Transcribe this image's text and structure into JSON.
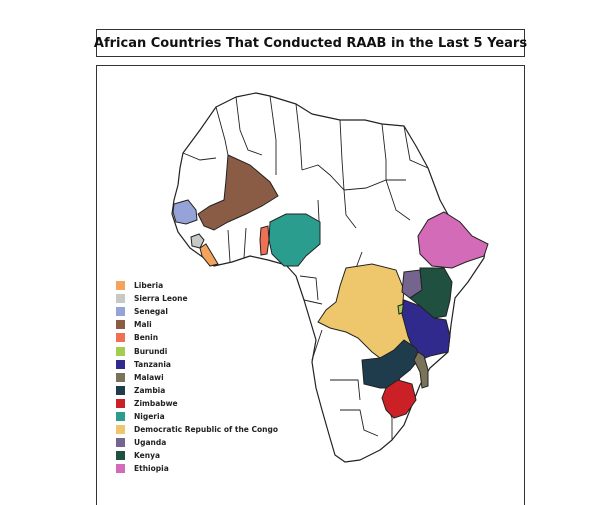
{
  "title": "African Countries That Conducted RAAB in the Last 5 Years",
  "legend": [
    {
      "label": "Liberia",
      "color": "#f2a45c"
    },
    {
      "label": "Sierra Leone",
      "color": "#c7c9c6"
    },
    {
      "label": "Senegal",
      "color": "#95a3d8"
    },
    {
      "label": "Mali",
      "color": "#8b5c45"
    },
    {
      "label": "Benin",
      "color": "#ee7155"
    },
    {
      "label": "Burundi",
      "color": "#a4cc4e"
    },
    {
      "label": "Tanzania",
      "color": "#2f2a8c"
    },
    {
      "label": "Malawi",
      "color": "#7a7359"
    },
    {
      "label": "Zambia",
      "color": "#1f3c4c"
    },
    {
      "label": "Zimbabwe",
      "color": "#cc2027"
    },
    {
      "label": "Nigeria",
      "color": "#2a9d8f"
    },
    {
      "label": "Democratic Republic of the Congo",
      "color": "#eec66c"
    },
    {
      "label": "Uganda",
      "color": "#74648e"
    },
    {
      "label": "Kenya",
      "color": "#1f5040"
    },
    {
      "label": "Ethiopia",
      "color": "#d36bb8"
    }
  ],
  "colors": {
    "land": "#ffffff",
    "border": "#222222"
  }
}
